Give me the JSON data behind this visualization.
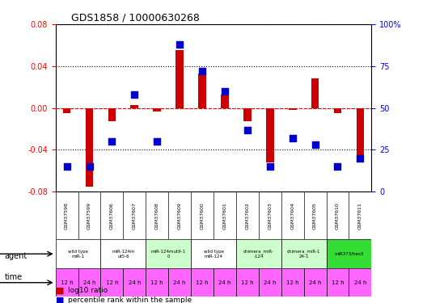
{
  "title": "GDS1858 / 10000630268",
  "samples": [
    "GSM37598",
    "GSM37599",
    "GSM37606",
    "GSM37607",
    "GSM37608",
    "GSM37609",
    "GSM37600",
    "GSM37601",
    "GSM37602",
    "GSM37603",
    "GSM37604",
    "GSM37605",
    "GSM37610",
    "GSM37611"
  ],
  "log10_ratio": [
    -0.005,
    -0.075,
    -0.013,
    0.003,
    -0.003,
    0.055,
    0.033,
    0.013,
    -0.013,
    -0.052,
    -0.002,
    0.028,
    -0.005,
    -0.048
  ],
  "pct_rank": [
    15,
    15,
    30,
    58,
    30,
    88,
    72,
    60,
    37,
    15,
    32,
    28,
    15,
    20
  ],
  "ylim": [
    -0.08,
    0.08
  ],
  "yticks_left": [
    -0.08,
    -0.04,
    0.0,
    0.04,
    0.08
  ],
  "yticks_right": [
    0,
    25,
    50,
    75,
    100
  ],
  "agent_groups": [
    {
      "label": "wild type\nmiR-1",
      "cols": [
        0,
        1
      ],
      "color": "#ffffff"
    },
    {
      "label": "miR-124m\nut5-6",
      "cols": [
        2,
        3
      ],
      "color": "#ffffff"
    },
    {
      "label": "miR-124mut9-1\n0",
      "cols": [
        4,
        5
      ],
      "color": "#ccffcc"
    },
    {
      "label": "wild type\nmiR-124",
      "cols": [
        6,
        7
      ],
      "color": "#ffffff"
    },
    {
      "label": "chimera_miR-\n-124",
      "cols": [
        8,
        9
      ],
      "color": "#ccffcc"
    },
    {
      "label": "chimera_miR-1\n24-1",
      "cols": [
        10,
        11
      ],
      "color": "#ccffcc"
    },
    {
      "label": "miR373/hes3",
      "cols": [
        12,
        13
      ],
      "color": "#33dd33"
    }
  ],
  "time_labels": [
    "12 h",
    "24 h",
    "12 h",
    "24 h",
    "12 h",
    "24 h",
    "12 h",
    "24 h",
    "12 h",
    "24 h",
    "12 h",
    "24 h",
    "12 h",
    "24 h"
  ],
  "time_color": "#ff66ff",
  "bar_color": "#cc0000",
  "dot_color": "#0000cc",
  "bg_color": "#ffffff",
  "sample_bg": "#dddddd"
}
